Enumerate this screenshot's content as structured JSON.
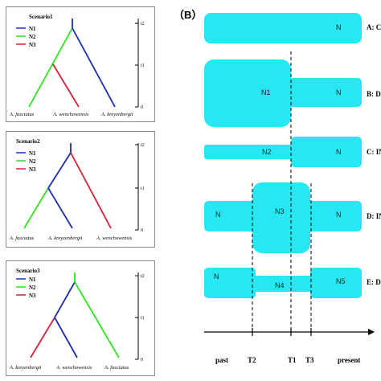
{
  "panel_b_label": "（B）",
  "colors": {
    "n1": "#1c2db3",
    "n2": "#2be61a",
    "n3": "#d6213a",
    "box": "#27e8f2"
  },
  "scenarios": [
    {
      "title": "Scenario1",
      "legend": [
        "N1",
        "N2",
        "N3"
      ],
      "species": [
        "A. fasciatus",
        "A. wenchowensis",
        "A. kreyenbergii"
      ],
      "axis": {
        "top": "t2",
        "mid": "t1",
        "bottom": "0"
      }
    },
    {
      "title": "Scenario2",
      "legend": [
        "N1",
        "N2",
        "N3"
      ],
      "species": [
        "A. fasciatus",
        "A. kreyeenbergii",
        "A. wenchowensis"
      ],
      "axis": {
        "top": "t2",
        "mid": "t1",
        "bottom": "0"
      }
    },
    {
      "title": "Scenario3",
      "legend": [
        "N1",
        "N2",
        "N3"
      ],
      "species": [
        "A. kreyenbergii",
        "A. wenchowensis",
        "A. fasciatus"
      ],
      "axis": {
        "top": "t2",
        "mid": "t1",
        "bottom": "0"
      }
    }
  ],
  "models": [
    {
      "side": "A: CON",
      "labels": [
        "N"
      ]
    },
    {
      "side": "B: DE",
      "labels": [
        "N1",
        "N"
      ]
    },
    {
      "side": "C: INC",
      "labels": [
        "N2",
        "N"
      ]
    },
    {
      "side": "D: INC",
      "labels": [
        "N",
        "N3",
        "N"
      ]
    },
    {
      "side": "E: DEC",
      "labels": [
        "N",
        "N4",
        "N5"
      ]
    }
  ],
  "timeline": {
    "labels": [
      "past",
      "T2",
      "T1",
      "T3",
      "present"
    ]
  }
}
